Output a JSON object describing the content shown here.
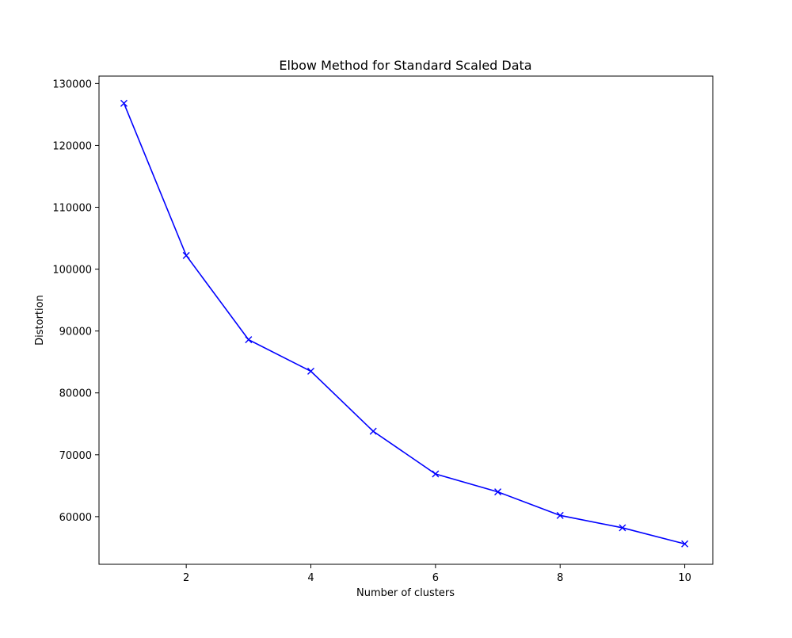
{
  "chart_data": {
    "type": "line",
    "title": "Elbow Method for Standard Scaled Data",
    "xlabel": "Number of clusters",
    "ylabel": "Distortion",
    "x": [
      1,
      2,
      3,
      4,
      5,
      6,
      7,
      8,
      9,
      10
    ],
    "series": [
      {
        "values": [
          126800,
          102200,
          88600,
          83500,
          73800,
          66900,
          64000,
          60200,
          58200,
          55600
        ],
        "color": "#0000ff",
        "marker": "x"
      }
    ],
    "xlim": [
      0.6,
      10.45
    ],
    "ylim": [
      52300,
      131200
    ],
    "xticks": [
      2,
      4,
      6,
      8,
      10
    ],
    "yticks": [
      60000,
      70000,
      80000,
      90000,
      100000,
      110000,
      120000,
      130000
    ],
    "grid": false,
    "legend": "none"
  }
}
